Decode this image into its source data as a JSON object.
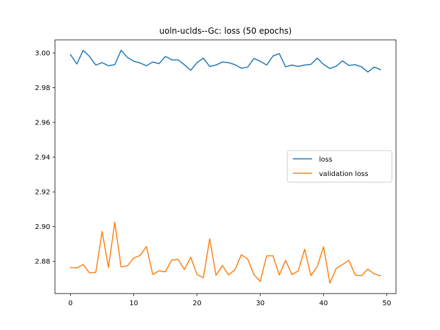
{
  "chart_data": {
    "type": "line",
    "title": "uoln-uclds--Gc: loss (50 epochs)",
    "xlabel": "",
    "ylabel": "",
    "xlim": [
      -2.45,
      51.45
    ],
    "ylim": [
      2.8615,
      3.0075
    ],
    "xticks": [
      0,
      10,
      20,
      30,
      40,
      50
    ],
    "yticks": [
      2.88,
      2.9,
      2.92,
      2.94,
      2.96,
      2.98,
      3.0
    ],
    "ytick_labels": [
      "2.88",
      "2.90",
      "2.92",
      "2.94",
      "2.96",
      "2.98",
      "3.00"
    ],
    "grid": false,
    "legend": "center-right",
    "x": [
      0,
      1,
      2,
      3,
      4,
      5,
      6,
      7,
      8,
      9,
      10,
      11,
      12,
      13,
      14,
      15,
      16,
      17,
      18,
      19,
      20,
      21,
      22,
      23,
      24,
      25,
      26,
      27,
      28,
      29,
      30,
      31,
      32,
      33,
      34,
      35,
      36,
      37,
      38,
      39,
      40,
      41,
      42,
      43,
      44,
      45,
      46,
      47,
      48,
      49
    ],
    "series": [
      {
        "name": "loss",
        "color": "#1f77b4",
        "values": [
          2.999,
          2.9936,
          3.0015,
          2.998,
          2.993,
          2.9944,
          2.9926,
          2.9932,
          3.0015,
          2.9974,
          2.9952,
          2.9942,
          2.9926,
          2.9948,
          2.9938,
          2.998,
          2.996,
          2.996,
          2.9932,
          2.99,
          2.9944,
          2.997,
          2.9922,
          2.993,
          2.9948,
          2.9944,
          2.9932,
          2.9912,
          2.9918,
          2.9968,
          2.9952,
          2.993,
          2.9982,
          2.9996,
          2.992,
          2.993,
          2.9922,
          2.993,
          2.9934,
          2.997,
          2.9934,
          2.991,
          2.9924,
          2.9954,
          2.9928,
          2.9932,
          2.992,
          2.989,
          2.9918,
          2.9904
        ]
      },
      {
        "name": "validation loss",
        "color": "#ff7f0e",
        "values": [
          2.8765,
          2.8762,
          2.8782,
          2.8734,
          2.8737,
          2.8972,
          2.8765,
          2.9025,
          2.8768,
          2.8775,
          2.882,
          2.8834,
          2.8886,
          2.8725,
          2.8746,
          2.874,
          2.8808,
          2.8812,
          2.8754,
          2.8824,
          2.8725,
          2.8706,
          2.893,
          2.872,
          2.8776,
          2.8722,
          2.8752,
          2.8838,
          2.8814,
          2.8724,
          2.8685,
          2.8832,
          2.8832,
          2.8722,
          2.8806,
          2.8724,
          2.8745,
          2.887,
          2.8718,
          2.877,
          2.8884,
          2.8675,
          2.876,
          2.8782,
          2.8806,
          2.8722,
          2.8718,
          2.8756,
          2.8728,
          2.8718
        ]
      }
    ]
  }
}
